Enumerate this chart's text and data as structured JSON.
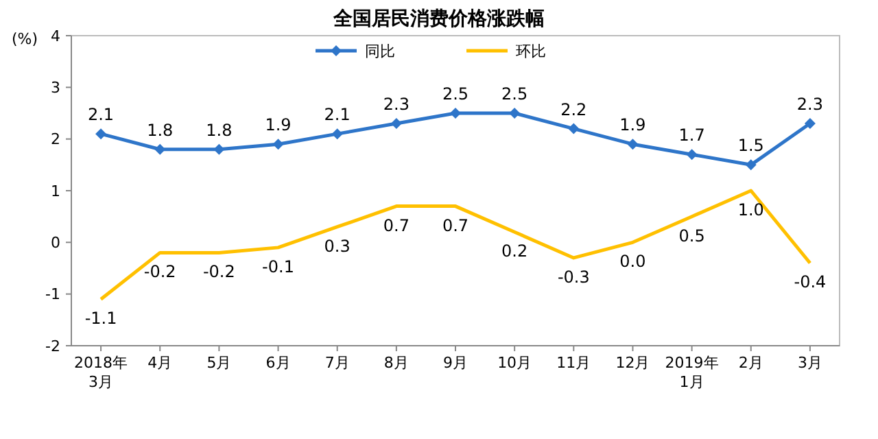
{
  "chart_data": {
    "type": "line",
    "title": "全国居民消费价格涨跌幅",
    "ylabel": "(%)",
    "categories": [
      "2018年\n3月",
      "4月",
      "5月",
      "6月",
      "7月",
      "8月",
      "9月",
      "10月",
      "11月",
      "12月",
      "2019年\n1月",
      "2月",
      "3月"
    ],
    "series": [
      {
        "name": "同比",
        "color": "#2e75c9",
        "marker": "diamond",
        "values": [
          2.1,
          1.8,
          1.8,
          1.9,
          2.1,
          2.3,
          2.5,
          2.5,
          2.2,
          1.9,
          1.7,
          1.5,
          2.3
        ]
      },
      {
        "name": "环比",
        "color": "#ffc000",
        "marker": "none",
        "values": [
          -1.1,
          -0.2,
          -0.2,
          -0.1,
          0.3,
          0.7,
          0.7,
          0.2,
          -0.3,
          0.0,
          0.5,
          1.0,
          -0.4
        ],
        "value_labels": [
          "-1.1",
          "-0.2",
          "-0.2",
          "-0.1",
          "0.3",
          "0.7",
          "0.7",
          "0.2",
          "-0.3",
          "0.0",
          "0.5",
          "1.0",
          "-0.4"
        ]
      }
    ],
    "ylim": [
      -2,
      4
    ],
    "yticks": [
      -2,
      -1,
      0,
      1,
      2,
      3,
      4
    ],
    "grid": false,
    "legend": "top",
    "data_labels": true,
    "line_style": "solid"
  }
}
